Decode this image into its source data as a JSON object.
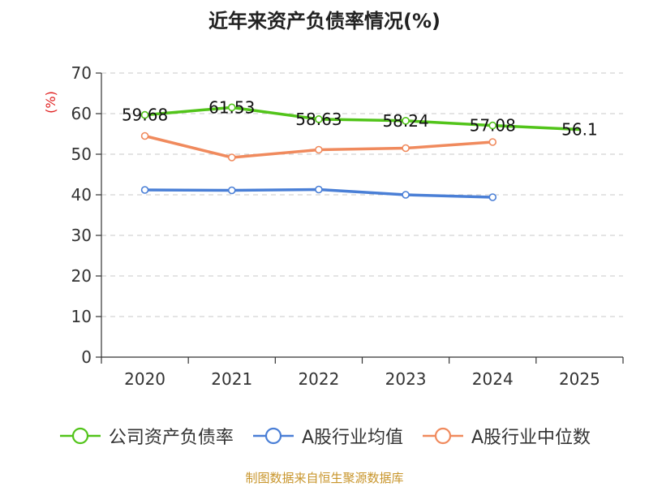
{
  "title": "近年来资产负债率情况(%)",
  "footer": "制图数据来自恒生聚源数据库",
  "chart_data": {
    "type": "line",
    "title": "近年来资产负债率情况(%)",
    "ylabel": "(%)",
    "categories": [
      "2020",
      "2021",
      "2022",
      "2023",
      "2024",
      "2025"
    ],
    "ylim": [
      0,
      70
    ],
    "yticks": [
      "0",
      "10",
      "20",
      "30",
      "40",
      "50",
      "60",
      "70"
    ],
    "grid": true,
    "legend_position": "bottom",
    "series": [
      {
        "name": "公司资产负债率",
        "color": "#52c41a",
        "values": [
          59.68,
          61.53,
          58.63,
          58.24,
          57.08,
          56.1
        ],
        "labels": [
          "59.68",
          "61.53",
          "58.63",
          "58.24",
          "57.08",
          "56.1"
        ]
      },
      {
        "name": "A股行业均值",
        "color": "#4a7fd6",
        "values": [
          41.2,
          41.1,
          41.3,
          40.0,
          39.4,
          null
        ]
      },
      {
        "name": "A股行业中位数",
        "color": "#f08a5d",
        "values": [
          54.5,
          49.2,
          51.1,
          51.5,
          53.0,
          null
        ]
      }
    ]
  }
}
